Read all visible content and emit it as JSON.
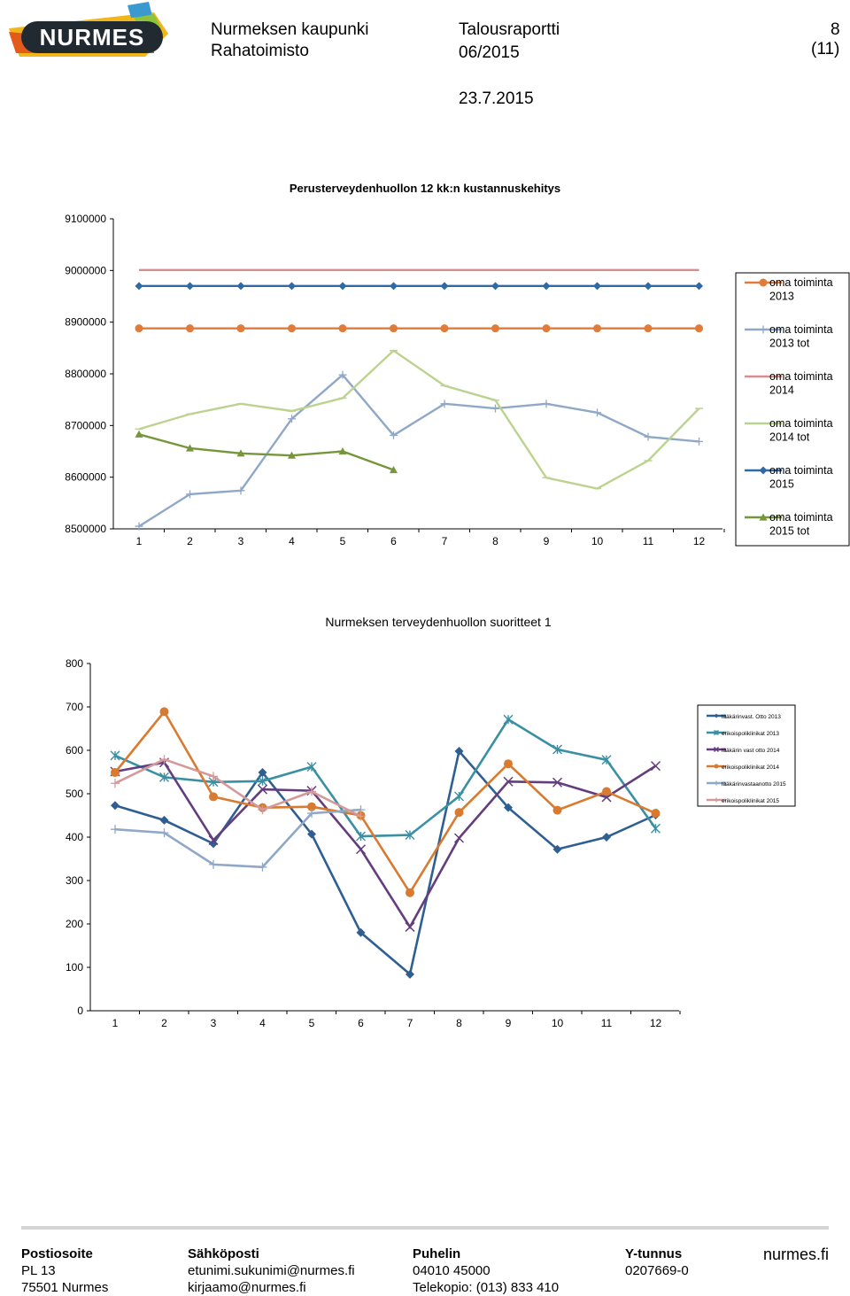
{
  "header": {
    "logo_text": "NURMES",
    "org_line1": "Nurmeksen kaupunki",
    "org_line2": "Rahatoimisto",
    "report_title": "Talousraportti",
    "report_period": "06/2015",
    "page_number": "8",
    "page_total": "(11)",
    "date": "23.7.2015"
  },
  "charts": {
    "chart_data": [
      {
        "type": "line",
        "title": "Perusterveydenhuollon 12 kk:n kustannuskehitys",
        "x": [
          1,
          2,
          3,
          4,
          5,
          6,
          7,
          8,
          9,
          10,
          11,
          12
        ],
        "ylim": [
          8500000,
          9100000
        ],
        "yticks": [
          8500000,
          8600000,
          8700000,
          8800000,
          8900000,
          9000000,
          9100000
        ],
        "ytick_labels": [
          "8500000",
          "8600000",
          "8700000",
          "8800000",
          "8900000",
          "9000000",
          "9100000"
        ],
        "legend_position": "right",
        "series": [
          {
            "name": "oma toiminta 2013",
            "color": "#e07b39",
            "marker": "circle",
            "values": [
              8888000,
              8888000,
              8888000,
              8888000,
              8888000,
              8888000,
              8888000,
              8888000,
              8888000,
              8888000,
              8888000,
              8888000
            ]
          },
          {
            "name": "oma toiminta 2013 tot",
            "color": "#8fa8c8",
            "marker": "plus",
            "values": [
              8505000,
              8567000,
              8574000,
              8713000,
              8798000,
              8681000,
              8742000,
              8733000,
              8742000,
              8725000,
              8678000,
              8669000
            ]
          },
          {
            "name": "oma toiminta 2014",
            "color": "#d98d8a",
            "marker": "none",
            "values": [
              9001000,
              9001000,
              9001000,
              9001000,
              9001000,
              9001000,
              9001000,
              9001000,
              9001000,
              9001000,
              9001000,
              9001000
            ]
          },
          {
            "name": "oma toiminta 2014 tot",
            "color": "#bcd38f",
            "marker": "dash",
            "values": [
              8693000,
              8722000,
              8742000,
              8728000,
              8753000,
              8845000,
              8777000,
              8749000,
              8599000,
              8578000,
              8632000,
              8733000
            ]
          },
          {
            "name": "oma toiminta 2015",
            "color": "#2e6aa6",
            "marker": "diamond",
            "values": [
              8970000,
              8970000,
              8970000,
              8970000,
              8970000,
              8970000,
              8970000,
              8970000,
              8970000,
              8970000,
              8970000,
              8970000
            ]
          },
          {
            "name": "oma toiminta 2015 tot",
            "color": "#77963c",
            "marker": "triangle",
            "values": [
              8683000,
              8656000,
              8646000,
              8642000,
              8650000,
              8614000,
              null,
              null,
              null,
              null,
              null,
              null
            ]
          }
        ]
      },
      {
        "type": "line",
        "title": "Nurmeksen terveydenhuollon suoritteet 1",
        "x": [
          1,
          2,
          3,
          4,
          5,
          6,
          7,
          8,
          9,
          10,
          11,
          12
        ],
        "ylim": [
          0,
          800
        ],
        "yticks": [
          0,
          100,
          200,
          300,
          400,
          500,
          600,
          700,
          800
        ],
        "ytick_labels": [
          "0",
          "100",
          "200",
          "300",
          "400",
          "500",
          "600",
          "700",
          "800"
        ],
        "legend_position": "right",
        "series": [
          {
            "name": "lääkärinvast. Otto 2013",
            "color": "#2f5f92",
            "marker": "diamond",
            "values": [
              473,
              439,
              385,
              549,
              407,
              180,
              84,
              598,
              468,
              372,
              400,
              451
            ]
          },
          {
            "name": "erikoispoliklinikat 2013",
            "color": "#3a8fa3",
            "marker": "star",
            "values": [
              588,
              538,
              527,
              529,
              562,
              402,
              405,
              494,
              671,
              602,
              578,
              420
            ]
          },
          {
            "name": "lääkärin vast otto 2014",
            "color": "#643d7e",
            "marker": "x",
            "values": [
              551,
              572,
              393,
              510,
              507,
              372,
              193,
              398,
              528,
              526,
              492,
              564
            ]
          },
          {
            "name": "erikoispoliklinikat 2014",
            "color": "#d87a30",
            "marker": "circle",
            "values": [
              549,
              689,
              493,
              468,
              470,
              450,
              272,
              457,
              569,
              462,
              505,
              455
            ]
          },
          {
            "name": "lääkärinvastaanotto 2015",
            "color": "#8fa8c8",
            "marker": "plus",
            "values": [
              418,
              410,
              337,
              331,
              455,
              463,
              null,
              null,
              null,
              null,
              null,
              null
            ]
          },
          {
            "name": "erikoispoliklinikat 2015",
            "color": "#d49a9a",
            "marker": "plus",
            "values": [
              524,
              579,
              540,
              463,
              505,
              448,
              null,
              null,
              null,
              null,
              null,
              null
            ]
          }
        ]
      }
    ]
  },
  "footer": {
    "postal_heading": "Postiosoite",
    "postal_line1": "PL 13",
    "postal_line2": "75501 Nurmes",
    "email_heading": "Sähköposti",
    "email_line1": "etunimi.sukunimi@nurmes.fi",
    "email_line2": "kirjaamo@nurmes.fi",
    "phone_heading": "Puhelin",
    "phone_line1": "04010 45000",
    "phone_line2": "Telekopio: (013) 833 410",
    "ytunnus_heading": "Y-tunnus",
    "ytunnus_value": "0207669-0",
    "website": "nurmes.fi"
  }
}
